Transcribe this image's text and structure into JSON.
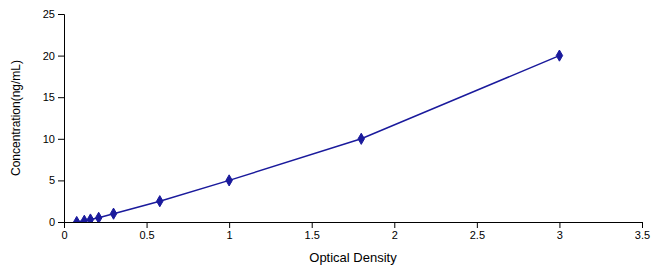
{
  "chart_data": {
    "type": "line",
    "x": [
      0.077,
      0.123,
      0.16,
      0.21,
      0.3,
      0.58,
      1,
      1.8,
      3
    ],
    "values": [
      0,
      0.15,
      0.3,
      0.5,
      1,
      2.5,
      5,
      10,
      20
    ],
    "color": "#1a1a9c",
    "marker": "diamond",
    "xlabel": "Optical Density",
    "ylabel": "Concentration(ng/mL)",
    "xlim": [
      0,
      3.5
    ],
    "ylim": [
      0,
      25
    ],
    "xticks": [
      0,
      0.5,
      1,
      1.5,
      2,
      2.5,
      3,
      3.5
    ],
    "yticks": [
      0,
      5,
      10,
      15,
      20,
      25
    ],
    "grid": false
  }
}
